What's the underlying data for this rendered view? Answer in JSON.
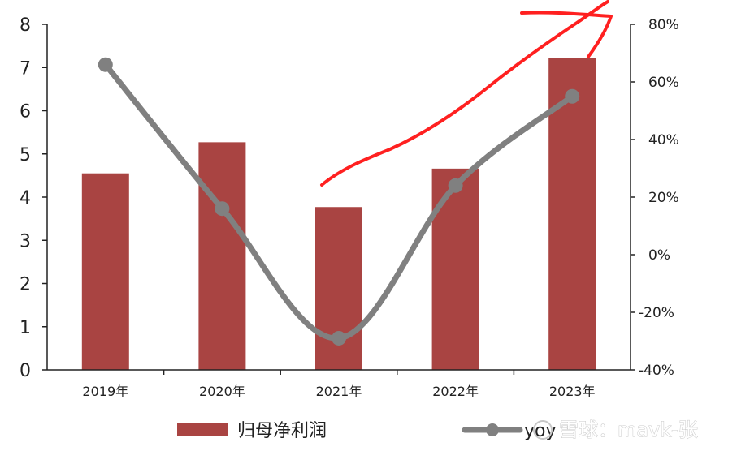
{
  "chart_data": {
    "type": "bar",
    "categories": [
      "2019年",
      "2020年",
      "2021年",
      "2022年",
      "2023年"
    ],
    "series": [
      {
        "name": "归母净利润",
        "type": "bar",
        "axis": "left",
        "values": [
          4.55,
          5.27,
          3.77,
          4.66,
          7.22
        ],
        "color": "#a94442"
      },
      {
        "name": "yoy",
        "type": "line",
        "axis": "right",
        "values": [
          66,
          16,
          -29,
          24,
          55
        ],
        "color": "#808080"
      }
    ],
    "y_left": {
      "range": [
        0,
        8
      ],
      "ticks": [
        "0",
        "1",
        "2",
        "3",
        "4",
        "5",
        "6",
        "7",
        "8"
      ]
    },
    "y_right": {
      "range": [
        -40,
        80
      ],
      "ticks": [
        "-40%",
        "-20%",
        "0%",
        "20%",
        "40%",
        "60%",
        "80%"
      ]
    },
    "legend_position": "bottom",
    "grid": false,
    "title": "",
    "xlabel": "",
    "ylabel": ""
  },
  "watermark": {
    "text": "雪球：mavk-张"
  },
  "annotation": {
    "kind": "hand-drawn red upward arrow",
    "color": "#ff2020"
  }
}
